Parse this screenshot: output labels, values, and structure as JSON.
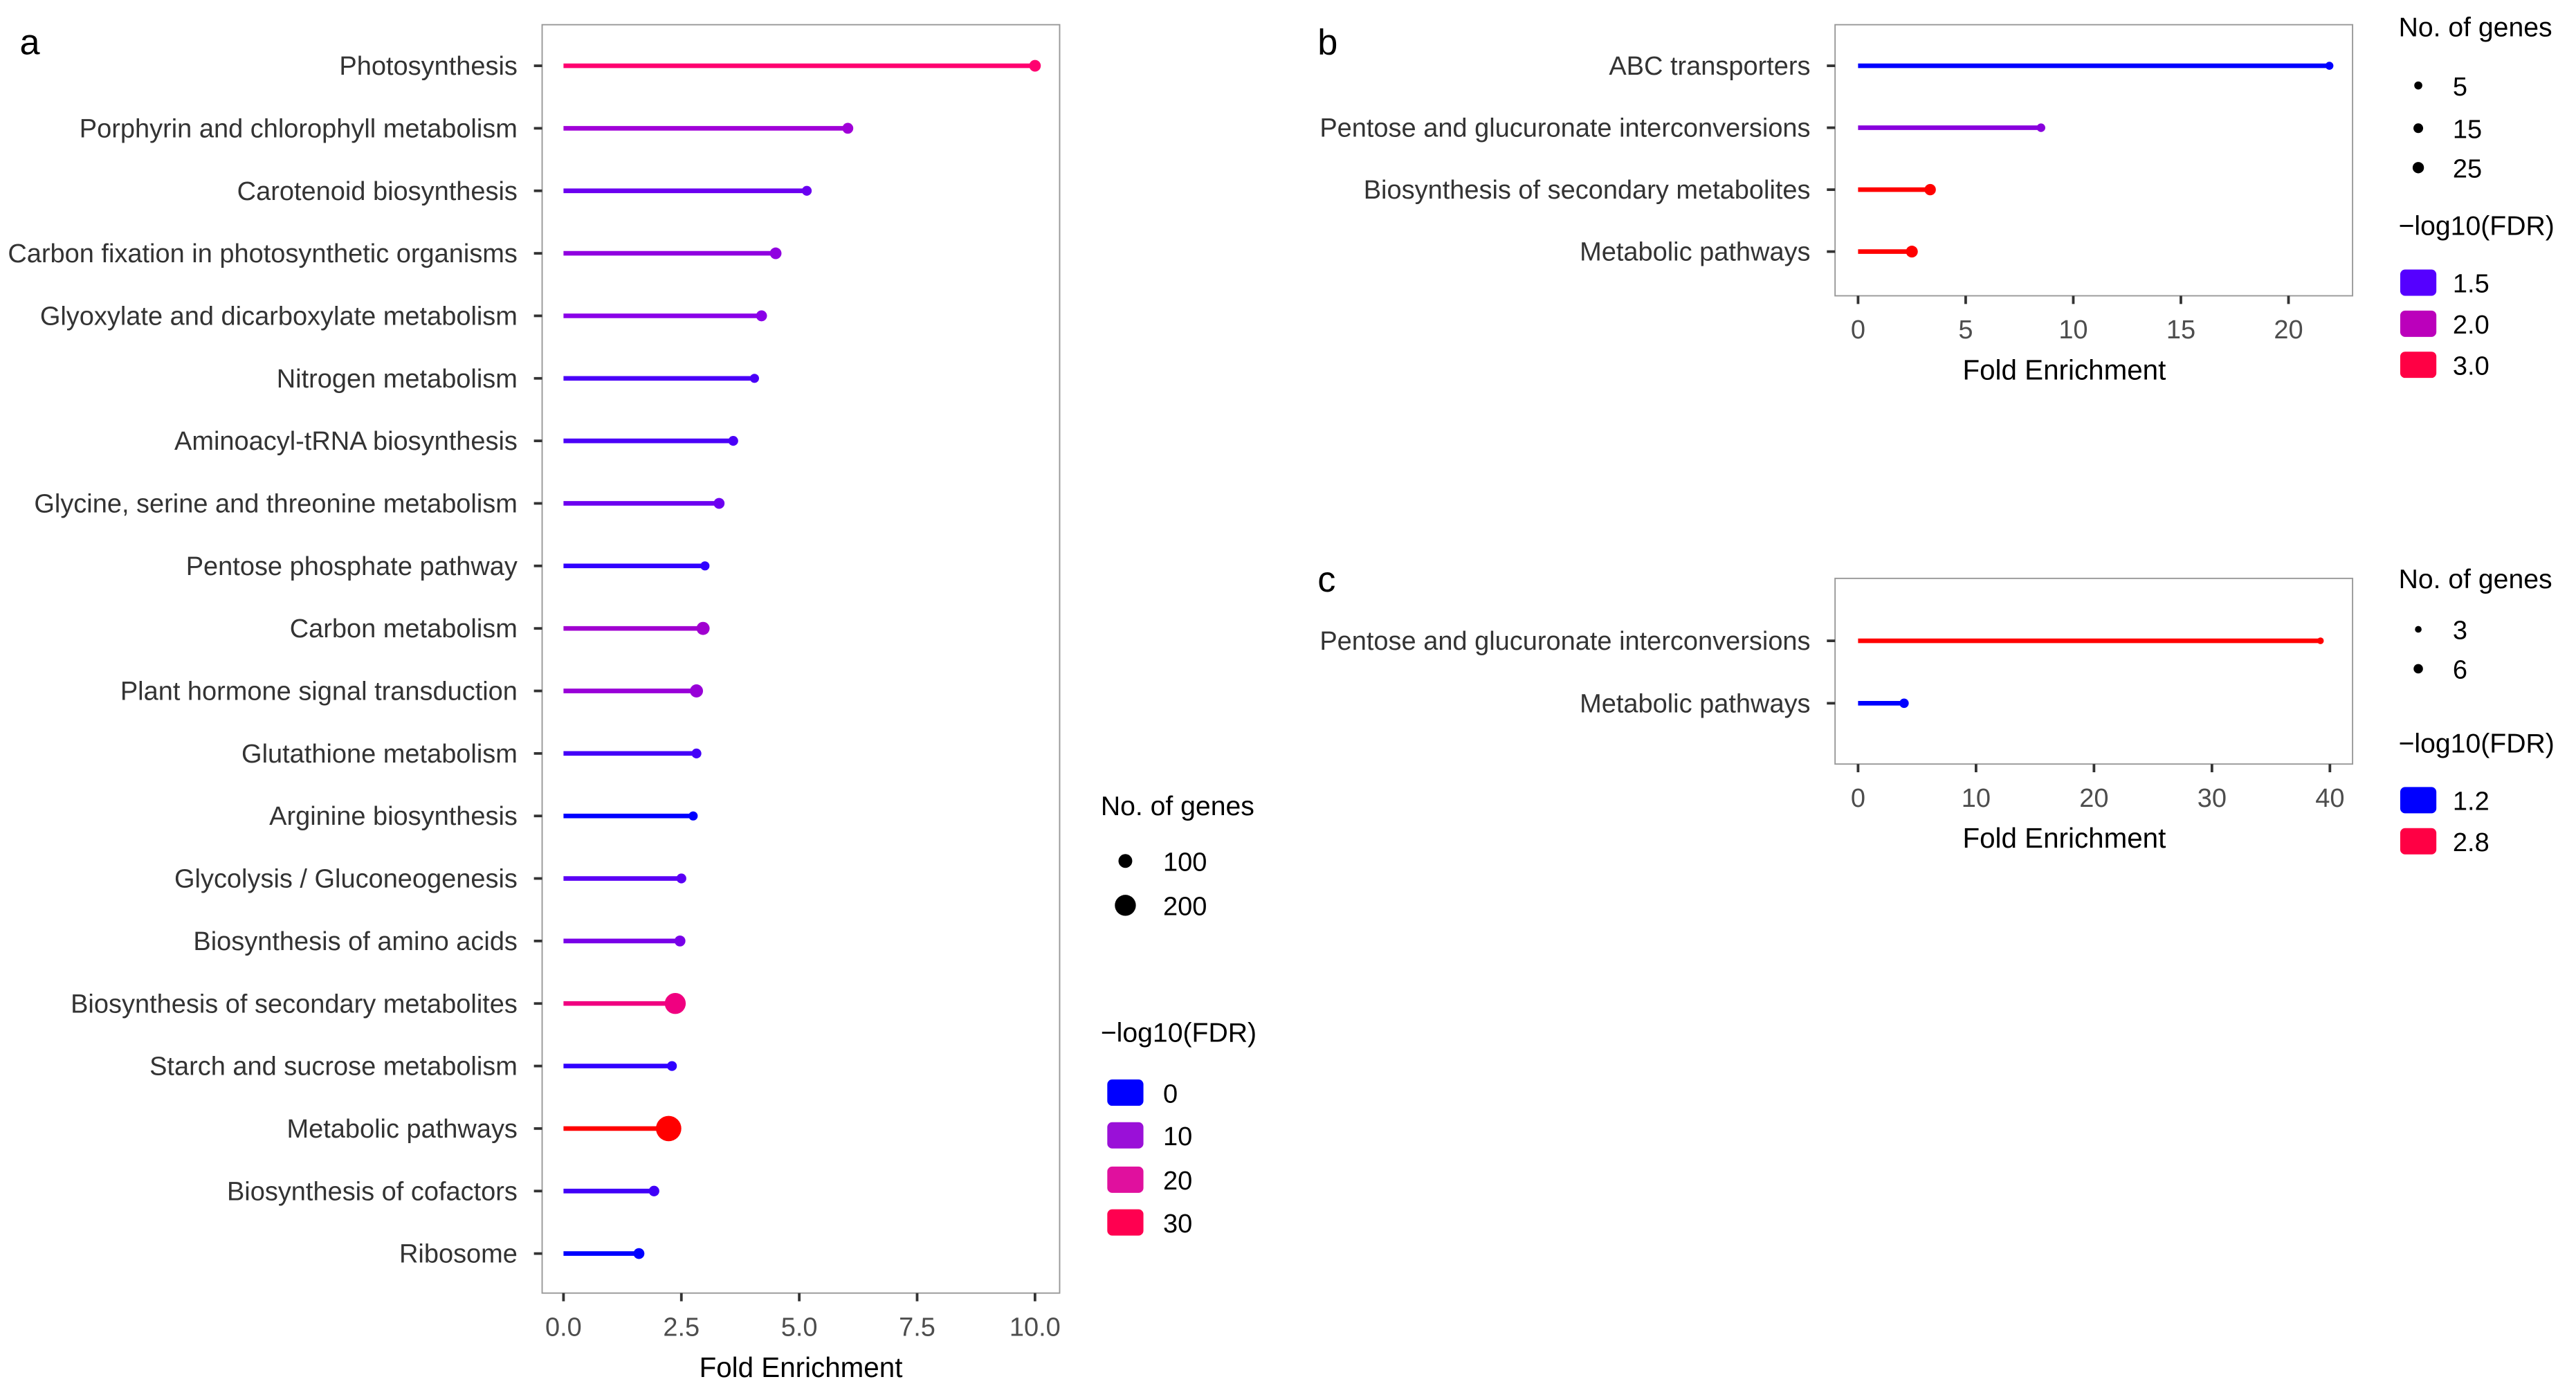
{
  "chart_data": [
    {
      "type": "lollipop",
      "panel": "a",
      "xlabel": "Fold Enrichment",
      "xlim": [
        0,
        10
      ],
      "xticks": [
        "0.0",
        "2.5",
        "5.0",
        "7.5",
        "10.0"
      ],
      "xtick_values": [
        0,
        2.5,
        5,
        7.5,
        10
      ],
      "categories": [
        "Photosynthesis",
        "Porphyrin and chlorophyll metabolism",
        "Carotenoid biosynthesis",
        "Carbon fixation in photosynthetic organisms",
        "Glyoxylate and dicarboxylate metabolism",
        "Nitrogen metabolism",
        "Aminoacyl-tRNA biosynthesis",
        "Glycine, serine and threonine metabolism",
        "Pentose phosphate pathway",
        "Carbon metabolism",
        "Plant hormone signal transduction",
        "Glutathione metabolism",
        "Arginine biosynthesis",
        "Glycolysis / Gluconeogenesis",
        "Biosynthesis of amino acids",
        "Biosynthesis of secondary metabolites",
        "Starch and sucrose metabolism",
        "Metabolic pathways",
        "Biosynthesis of cofactors",
        "Ribosome"
      ],
      "values": [
        10.0,
        6.03,
        5.16,
        4.5,
        4.2,
        4.05,
        3.6,
        3.3,
        3.0,
        2.96,
        2.82,
        2.82,
        2.75,
        2.5,
        2.47,
        2.37,
        2.3,
        2.23,
        1.92,
        1.6
      ],
      "genes": [
        70,
        60,
        45,
        70,
        60,
        35,
        45,
        60,
        35,
        90,
        90,
        45,
        35,
        45,
        60,
        200,
        45,
        260,
        55,
        60
      ],
      "colors": [
        "#FF0070",
        "#A000D8",
        "#6A00F0",
        "#9000E0",
        "#8A00E8",
        "#4A00F8",
        "#4A00F8",
        "#6C00F0",
        "#3000FF",
        "#A000D0",
        "#9800D8",
        "#4400F8",
        "#0000FF",
        "#5A00F5",
        "#7800E8",
        "#F00080",
        "#3000FF",
        "#FF0000",
        "#4000F8",
        "#0000FF"
      ],
      "size_legend": {
        "title": "No. of genes",
        "labels": [
          "100",
          "200"
        ],
        "values": [
          100,
          200
        ]
      },
      "color_legend": {
        "title": "−log10(FDR)",
        "labels": [
          "0",
          "10",
          "20",
          "30"
        ],
        "colors": [
          "#0000FF",
          "#9A10D8",
          "#E0109E",
          "#FF0050"
        ]
      }
    },
    {
      "type": "lollipop",
      "panel": "b",
      "xlabel": "Fold Enrichment",
      "xlim": [
        0,
        22
      ],
      "xticks": [
        "0",
        "5",
        "10",
        "15",
        "20"
      ],
      "xtick_values": [
        0,
        5,
        10,
        15,
        20
      ],
      "categories": [
        "ABC transporters",
        "Pentose and glucuronate interconversions",
        "Biosynthesis of secondary metabolites",
        "Metabolic pathways"
      ],
      "values": [
        21.9,
        8.5,
        3.35,
        2.5
      ],
      "genes": [
        5,
        8,
        25,
        28
      ],
      "colors": [
        "#0000FF",
        "#8800DD",
        "#FF0000",
        "#FF0000"
      ],
      "size_legend": {
        "title": "No. of genes",
        "labels": [
          "5",
          "15",
          "25"
        ],
        "values": [
          5,
          15,
          25
        ]
      },
      "color_legend": {
        "title": "−log10(FDR)",
        "labels": [
          "1.5",
          "2.0",
          "3.0"
        ],
        "colors": [
          "#5500FF",
          "#BB00BB",
          "#FF0044"
        ]
      }
    },
    {
      "type": "lollipop",
      "panel": "c",
      "xlabel": "Fold Enrichment",
      "xlim": [
        0,
        40
      ],
      "xticks": [
        "0",
        "10",
        "20",
        "30",
        "40"
      ],
      "xtick_values": [
        0,
        10,
        20,
        30,
        40
      ],
      "categories": [
        "Pentose and glucuronate interconversions",
        "Metabolic pathways"
      ],
      "values": [
        39.2,
        3.9
      ],
      "genes": [
        3,
        6
      ],
      "colors": [
        "#FF0000",
        "#0000FF"
      ],
      "size_legend": {
        "title": "No. of genes",
        "labels": [
          "3",
          "6"
        ],
        "values": [
          3,
          6
        ]
      },
      "color_legend": {
        "title": "−log10(FDR)",
        "labels": [
          "1.2",
          "2.8"
        ],
        "colors": [
          "#0000FF",
          "#FF0044"
        ]
      }
    }
  ]
}
